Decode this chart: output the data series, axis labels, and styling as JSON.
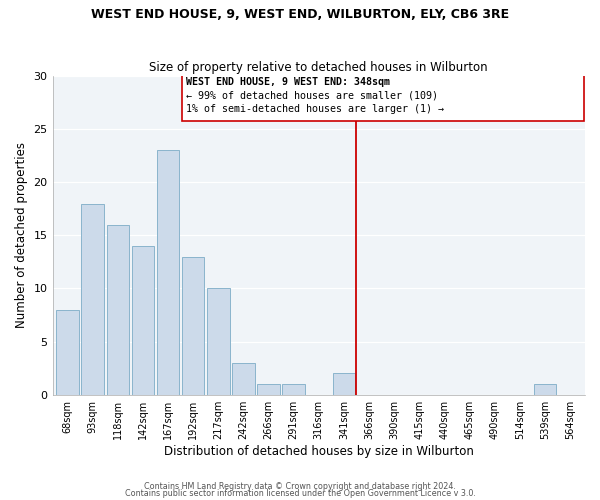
{
  "title": "WEST END HOUSE, 9, WEST END, WILBURTON, ELY, CB6 3RE",
  "subtitle": "Size of property relative to detached houses in Wilburton",
  "xlabel": "Distribution of detached houses by size in Wilburton",
  "ylabel": "Number of detached properties",
  "bar_labels": [
    "68sqm",
    "93sqm",
    "118sqm",
    "142sqm",
    "167sqm",
    "192sqm",
    "217sqm",
    "242sqm",
    "266sqm",
    "291sqm",
    "316sqm",
    "341sqm",
    "366sqm",
    "390sqm",
    "415sqm",
    "440sqm",
    "465sqm",
    "490sqm",
    "514sqm",
    "539sqm",
    "564sqm"
  ],
  "bar_values": [
    8,
    18,
    16,
    14,
    23,
    13,
    10,
    3,
    1,
    1,
    0,
    2,
    0,
    0,
    0,
    0,
    0,
    0,
    0,
    1,
    0
  ],
  "bar_color": "#ccdaea",
  "bar_edgecolor": "#8ab4cc",
  "axes_bg": "#f0f4f8",
  "grid_color": "#ffffff",
  "marker_color": "#cc0000",
  "annotation_title": "WEST END HOUSE, 9 WEST END: 348sqm",
  "annotation_line1": "← 99% of detached houses are smaller (109)",
  "annotation_line2": "1% of semi-detached houses are larger (1) →",
  "ylim": [
    0,
    30
  ],
  "yticks": [
    0,
    5,
    10,
    15,
    20,
    25,
    30
  ],
  "footer1": "Contains HM Land Registry data © Crown copyright and database right 2024.",
  "footer2": "Contains public sector information licensed under the Open Government Licence v 3.0."
}
